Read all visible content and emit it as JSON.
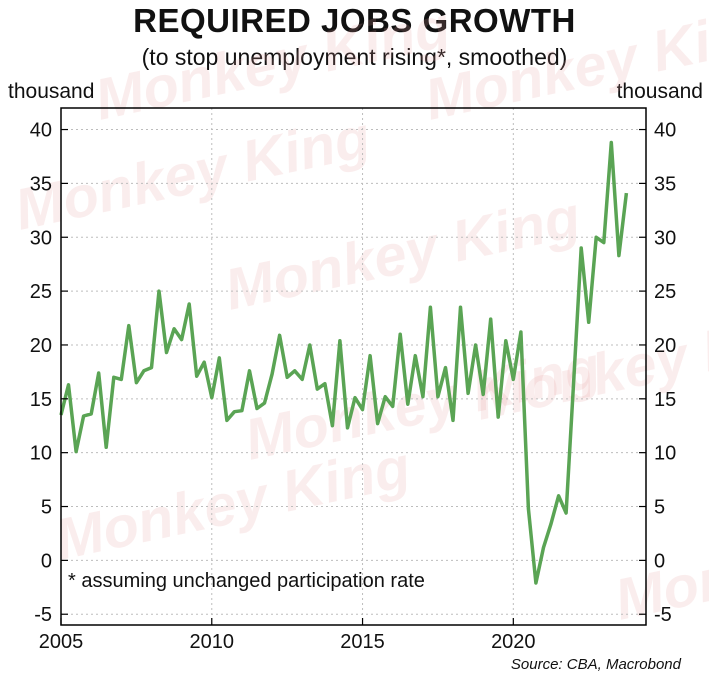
{
  "chart_data": {
    "type": "line",
    "title": "REQUIRED JOBS GROWTH",
    "subtitle": "(to stop unemployment rising*, smoothed)",
    "ylabel_left": "thousand",
    "ylabel_right": "thousand",
    "xlim": [
      2005.0,
      2024.4
    ],
    "ylim": [
      -6,
      42
    ],
    "y_ticks": [
      40,
      35,
      30,
      25,
      20,
      15,
      10,
      5,
      0,
      -5
    ],
    "x_ticks": [
      2005,
      2010,
      2015,
      2020
    ],
    "grid": true,
    "note": "*  assuming unchanged participation rate",
    "source": "Source: CBA, Macrobond",
    "watermark": "Monkey King",
    "series": [
      {
        "color": "#5aa454",
        "points": [
          [
            2005.0,
            13.5
          ],
          [
            2005.25,
            16.3
          ],
          [
            2005.5,
            10.1
          ],
          [
            2005.75,
            13.4
          ],
          [
            2006.0,
            13.6
          ],
          [
            2006.25,
            17.4
          ],
          [
            2006.5,
            10.5
          ],
          [
            2006.75,
            17.0
          ],
          [
            2007.0,
            16.8
          ],
          [
            2007.25,
            21.8
          ],
          [
            2007.5,
            16.5
          ],
          [
            2007.75,
            17.6
          ],
          [
            2008.0,
            17.9
          ],
          [
            2008.25,
            25.0
          ],
          [
            2008.5,
            19.3
          ],
          [
            2008.75,
            21.5
          ],
          [
            2009.0,
            20.5
          ],
          [
            2009.25,
            23.8
          ],
          [
            2009.5,
            17.1
          ],
          [
            2009.75,
            18.4
          ],
          [
            2010.0,
            15.1
          ],
          [
            2010.25,
            18.8
          ],
          [
            2010.5,
            13.0
          ],
          [
            2010.75,
            13.8
          ],
          [
            2011.0,
            13.9
          ],
          [
            2011.25,
            17.6
          ],
          [
            2011.5,
            14.1
          ],
          [
            2011.75,
            14.6
          ],
          [
            2012.0,
            17.3
          ],
          [
            2012.25,
            20.9
          ],
          [
            2012.5,
            17.0
          ],
          [
            2012.75,
            17.6
          ],
          [
            2013.0,
            16.8
          ],
          [
            2013.25,
            20.0
          ],
          [
            2013.5,
            15.9
          ],
          [
            2013.75,
            16.4
          ],
          [
            2014.0,
            12.5
          ],
          [
            2014.25,
            20.4
          ],
          [
            2014.5,
            12.3
          ],
          [
            2014.75,
            15.1
          ],
          [
            2015.0,
            14.0
          ],
          [
            2015.25,
            19.0
          ],
          [
            2015.5,
            12.7
          ],
          [
            2015.75,
            15.2
          ],
          [
            2016.0,
            14.3
          ],
          [
            2016.25,
            21.0
          ],
          [
            2016.5,
            14.5
          ],
          [
            2016.75,
            19.0
          ],
          [
            2017.0,
            15.2
          ],
          [
            2017.25,
            23.5
          ],
          [
            2017.5,
            15.2
          ],
          [
            2017.75,
            17.9
          ],
          [
            2018.0,
            13.0
          ],
          [
            2018.25,
            23.5
          ],
          [
            2018.5,
            15.5
          ],
          [
            2018.75,
            20.0
          ],
          [
            2019.0,
            15.4
          ],
          [
            2019.25,
            22.4
          ],
          [
            2019.5,
            13.3
          ],
          [
            2019.75,
            20.4
          ],
          [
            2020.0,
            16.8
          ],
          [
            2020.25,
            21.2
          ],
          [
            2020.5,
            4.8
          ],
          [
            2020.75,
            -2.1
          ],
          [
            2021.0,
            1.2
          ],
          [
            2021.25,
            3.4
          ],
          [
            2021.5,
            6.0
          ],
          [
            2021.75,
            4.4
          ],
          [
            2022.0,
            16.5
          ],
          [
            2022.25,
            29.0
          ],
          [
            2022.5,
            22.1
          ],
          [
            2022.75,
            30.0
          ],
          [
            2023.0,
            29.5
          ],
          [
            2023.25,
            38.8
          ],
          [
            2023.5,
            28.3
          ],
          [
            2023.75,
            34.1
          ]
        ]
      }
    ]
  }
}
